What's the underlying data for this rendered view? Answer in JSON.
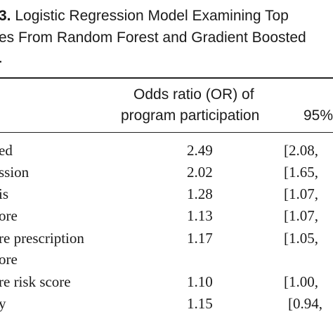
{
  "caption": {
    "number": "3.",
    "line1": "Logistic Regression Model Examining Top",
    "line2": "es From Random Forest and Gradient Boosted",
    "line3": "."
  },
  "table": {
    "header": {
      "col_or_line1": "Odds ratio (OR) of",
      "col_or_line2": "program participation",
      "col_ci": "95%"
    },
    "rows": [
      {
        "label": "ed",
        "or": "2.49",
        "ci": "[2.08,"
      },
      {
        "label": "ssion",
        "or": "2.02",
        "ci": "[1.65,"
      },
      {
        "label": "is",
        "or": "1.28",
        "ci": "[1.07,"
      },
      {
        "label": "ore",
        "or": "1.13",
        "ci": "[1.07,"
      },
      {
        "label": "re prescription",
        "label2": "ore",
        "or": "1.17",
        "ci": "[1.05,"
      },
      {
        "label": "re risk score",
        "or": "1.10",
        "ci": "[1.00,"
      },
      {
        "label": "y",
        "or": "1.15",
        "ci": "[0.94,"
      }
    ]
  }
}
